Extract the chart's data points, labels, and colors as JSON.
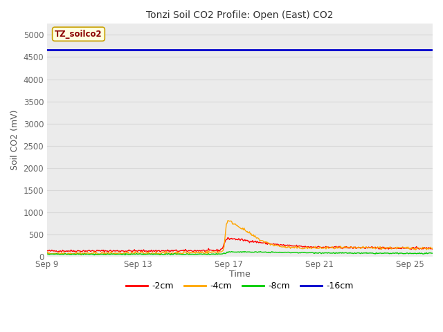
{
  "title": "Tonzi Soil CO2 Profile: Open (East) CO2",
  "ylabel": "Soil CO2 (mV)",
  "xlabel": "Time",
  "watermark_text": "TZ_soilco2",
  "ylim": [
    0,
    5250
  ],
  "yticks": [
    0,
    500,
    1000,
    1500,
    2000,
    2500,
    3000,
    3500,
    4000,
    4500,
    5000
  ],
  "fig_bg": "#ffffff",
  "axes_bg": "#ebebeb",
  "grid_color": "#d8d8d8",
  "lines": [
    {
      "label": "-2cm",
      "color": "#ff0000",
      "linewidth": 1.0
    },
    {
      "label": "-4cm",
      "color": "#ffa500",
      "linewidth": 1.0
    },
    {
      "label": "-8cm",
      "color": "#00cc00",
      "linewidth": 1.0
    },
    {
      "label": "-16cm",
      "color": "#0000cc",
      "linewidth": 2.0
    }
  ],
  "total_days": 17,
  "blue_line_value": 4660,
  "peak_value_4cm": 950,
  "peak_value_2cm": 480,
  "baseline_2cm": 130,
  "baseline_4cm": 75,
  "baseline_8cm": 55,
  "post_peak_2cm": 210,
  "post_peak_4cm": 220,
  "post_peak_8cm": 75,
  "xtick_labels": [
    "Sep 9",
    "Sep 13",
    "Sep 17",
    "Sep 21",
    "Sep 25"
  ],
  "xtick_days": [
    0,
    4,
    8,
    12,
    16
  ],
  "sep17_day": 8,
  "watermark_facecolor": "#ffffe0",
  "watermark_edgecolor": "#c8a000",
  "watermark_textcolor": "#8b0000",
  "tick_color": "#666666",
  "title_color": "#333333",
  "label_color": "#555555"
}
